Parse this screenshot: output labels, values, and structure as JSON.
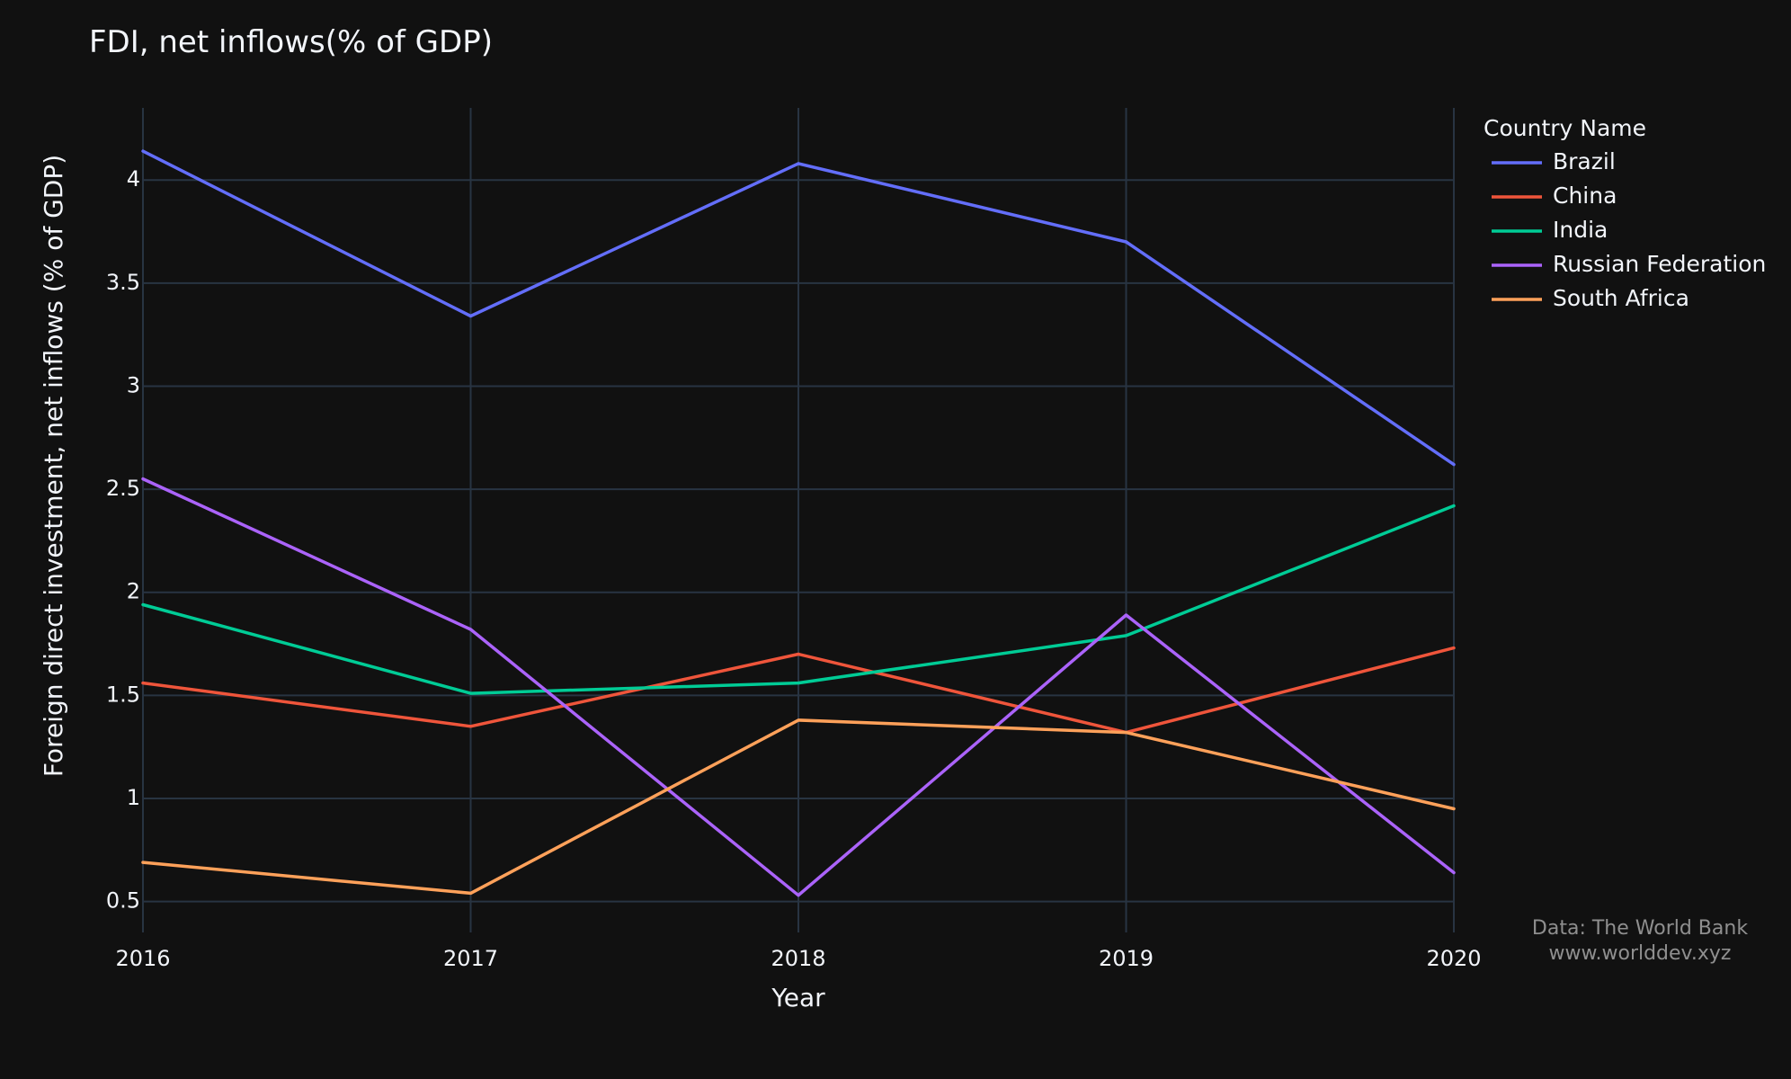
{
  "chart_data": {
    "type": "line",
    "title": "FDI, net inflows(% of GDP)",
    "xlabel": "Year",
    "ylabel": "Foreign direct investment, net inflows (% of GDP)",
    "x": [
      2016,
      2017,
      2018,
      2019,
      2020
    ],
    "x_tick_labels": [
      "2016",
      "2017",
      "2018",
      "2019",
      "2020"
    ],
    "xlim": [
      2016,
      2020
    ],
    "ylim": [
      0.35,
      4.35
    ],
    "y_ticks": [
      0.5,
      1,
      1.5,
      2,
      2.5,
      3,
      3.5,
      4
    ],
    "y_tick_labels": [
      "0.5",
      "1",
      "1.5",
      "2",
      "2.5",
      "3",
      "3.5",
      "4"
    ],
    "grid": true,
    "legend_title": "Country Name",
    "legend_position": "top-right",
    "series": [
      {
        "name": "Brazil",
        "color": "#636efa",
        "values": [
          4.14,
          3.34,
          4.08,
          3.7,
          2.62
        ]
      },
      {
        "name": "China",
        "color": "#ef553b",
        "values": [
          1.56,
          1.35,
          1.7,
          1.32,
          1.73
        ]
      },
      {
        "name": "India",
        "color": "#00cc96",
        "values": [
          1.94,
          1.51,
          1.56,
          1.79,
          2.42
        ]
      },
      {
        "name": "Russian Federation",
        "color": "#ab63fa",
        "values": [
          2.55,
          1.82,
          0.53,
          1.89,
          0.64
        ]
      },
      {
        "name": "South Africa",
        "color": "#ffa15a",
        "values": [
          0.69,
          0.54,
          1.38,
          1.32,
          0.95
        ]
      }
    ]
  },
  "source": {
    "line1": "Data: The World Bank",
    "line2": "www.worlddev.xyz"
  }
}
